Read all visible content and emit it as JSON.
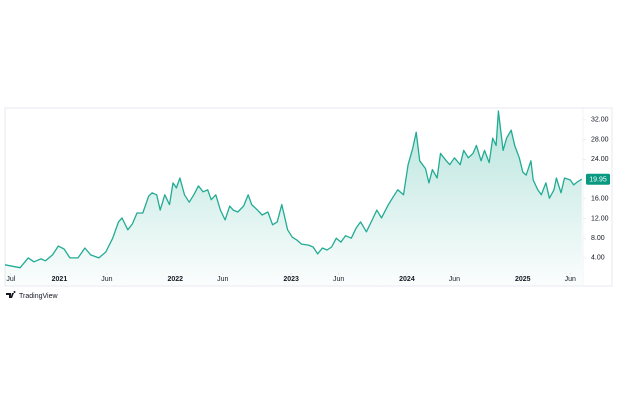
{
  "chart_data": {
    "type": "line",
    "color": "#22ab94",
    "badge_color": "#089981",
    "x": [
      2020.53,
      2020.62,
      2020.66,
      2020.73,
      2020.78,
      2020.84,
      2020.88,
      2020.94,
      2020.99,
      2021.04,
      2021.09,
      2021.16,
      2021.22,
      2021.27,
      2021.34,
      2021.4,
      2021.46,
      2021.51,
      2021.54,
      2021.59,
      2021.63,
      2021.67,
      2021.72,
      2021.77,
      2021.8,
      2021.84,
      2021.87,
      2021.91,
      2021.95,
      2021.98,
      2022.01,
      2022.04,
      2022.08,
      2022.12,
      2022.16,
      2022.2,
      2022.24,
      2022.28,
      2022.31,
      2022.35,
      2022.39,
      2022.43,
      2022.47,
      2022.5,
      2022.54,
      2022.59,
      2022.63,
      2022.66,
      2022.71,
      2022.75,
      2022.8,
      2022.84,
      2022.88,
      2022.92,
      2022.97,
      2023.01,
      2023.05,
      2023.09,
      2023.15,
      2023.19,
      2023.23,
      2023.27,
      2023.31,
      2023.35,
      2023.39,
      2023.43,
      2023.47,
      2023.52,
      2023.56,
      2023.6,
      2023.65,
      2023.7,
      2023.74,
      2023.78,
      2023.84,
      2023.88,
      2023.92,
      2023.97,
      2024.01,
      2024.05,
      2024.08,
      2024.11,
      2024.16,
      2024.19,
      2024.22,
      2024.26,
      2024.29,
      2024.34,
      2024.37,
      2024.41,
      2024.46,
      2024.49,
      2024.53,
      2024.57,
      2024.6,
      2024.64,
      2024.67,
      2024.71,
      2024.74,
      2024.77,
      2024.79,
      2024.83,
      2024.86,
      2024.9,
      2024.93,
      2024.97,
      2025.0,
      2025.03,
      2025.07,
      2025.09,
      2025.13,
      2025.16,
      2025.2,
      2025.23,
      2025.27,
      2025.29,
      2025.33,
      2025.36,
      2025.41,
      2025.44,
      2025.47,
      2025.51
    ],
    "values": [
      2.6,
      2.2,
      2.0,
      4.0,
      3.2,
      3.8,
      3.4,
      4.6,
      6.4,
      5.8,
      4.0,
      4.0,
      6.0,
      4.6,
      4.0,
      5.2,
      8.0,
      11.3,
      12.1,
      9.7,
      10.9,
      13.1,
      13.1,
      16.5,
      17.2,
      16.8,
      13.7,
      16.8,
      14.8,
      19.2,
      18.2,
      20.2,
      16.8,
      15.3,
      16.8,
      18.6,
      17.4,
      17.8,
      15.8,
      16.8,
      13.7,
      11.7,
      14.5,
      13.7,
      13.3,
      14.5,
      16.8,
      14.8,
      13.7,
      12.7,
      13.3,
      10.7,
      11.3,
      14.8,
      9.7,
      8.2,
      7.6,
      6.8,
      6.6,
      6.2,
      4.8,
      6.0,
      5.6,
      6.2,
      8.0,
      7.2,
      8.5,
      8.0,
      10.0,
      11.3,
      9.3,
      11.7,
      13.7,
      12.1,
      14.8,
      16.3,
      17.8,
      16.8,
      22.9,
      26.2,
      29.5,
      23.7,
      22.1,
      19.2,
      21.9,
      20.2,
      25.2,
      23.7,
      22.9,
      24.3,
      22.9,
      25.8,
      24.3,
      25.2,
      26.8,
      23.7,
      25.8,
      23.3,
      28.3,
      26.8,
      33.8,
      25.8,
      28.3,
      29.9,
      26.8,
      24.3,
      21.4,
      20.8,
      23.7,
      19.8,
      17.8,
      16.8,
      19.2,
      16.1,
      17.8,
      20.2,
      17.2,
      20.2,
      19.8,
      18.8,
      19.4,
      19.95
    ],
    "xlim": [
      2020.53,
      2025.52
    ],
    "xticks": [
      {
        "value": 2020.58,
        "label": "Jul"
      },
      {
        "value": 2021,
        "label": "2021"
      },
      {
        "value": 2021.41,
        "label": "Jun"
      },
      {
        "value": 2022,
        "label": "2022"
      },
      {
        "value": 2022.41,
        "label": "Jun"
      },
      {
        "value": 2023,
        "label": "2023"
      },
      {
        "value": 2023.41,
        "label": "Jun"
      },
      {
        "value": 2024,
        "label": "2024"
      },
      {
        "value": 2024.41,
        "label": "Jun"
      },
      {
        "value": 2025,
        "label": "2025"
      },
      {
        "value": 2025.41,
        "label": "Jun"
      }
    ],
    "ylim": [
      -1.5,
      34.4
    ],
    "yticks": [
      {
        "value": 4,
        "label": "4.00"
      },
      {
        "value": 8,
        "label": "8.00"
      },
      {
        "value": 12,
        "label": "12.00"
      },
      {
        "value": 16,
        "label": "16.00"
      },
      {
        "value": 24,
        "label": "24.00"
      },
      {
        "value": 28,
        "label": "28.00"
      },
      {
        "value": 32,
        "label": "32.00"
      }
    ],
    "last_value": 19.95,
    "brand": "TradingView"
  }
}
